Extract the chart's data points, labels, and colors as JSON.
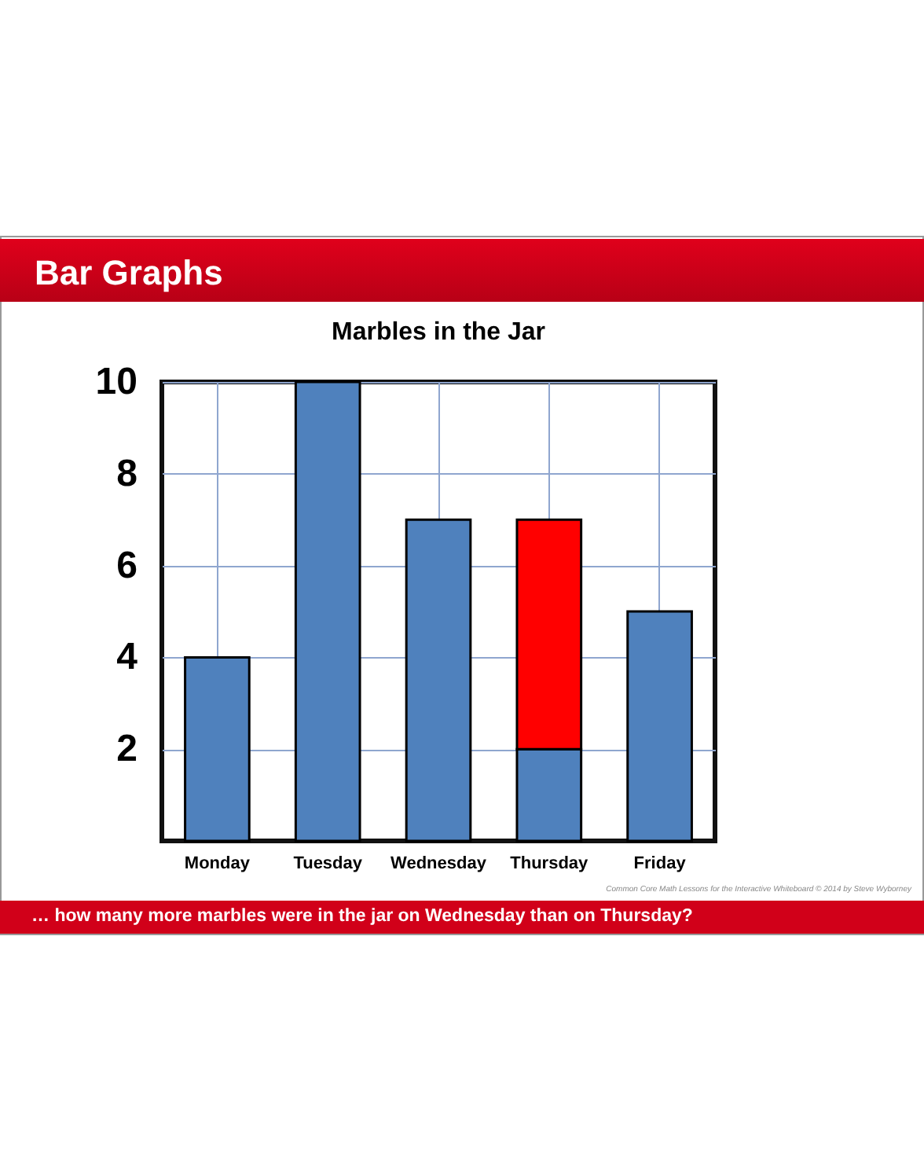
{
  "chart_data": {
    "type": "bar",
    "title": "Marbles in the Jar",
    "categories": [
      "Monday",
      "Tuesday",
      "Wednesday",
      "Thursday",
      "Friday"
    ],
    "series": [
      {
        "color": "#4f81bd",
        "values": [
          4,
          10,
          7,
          2,
          5
        ]
      },
      {
        "color": "#ff0000",
        "values": [
          null,
          null,
          null,
          5,
          null
        ]
      }
    ],
    "stacked": true,
    "ylim": [
      0,
      10
    ],
    "yticks": [
      2,
      4,
      6,
      8,
      10
    ],
    "grid": true,
    "annotations": [
      "Bar Graphs",
      "… how many more marbles were in the jar on Wednesday than on Thursday?",
      "Common Core Math Lessons for the Interactive Whiteboard © 2014 by Steve Wyborney"
    ]
  }
}
